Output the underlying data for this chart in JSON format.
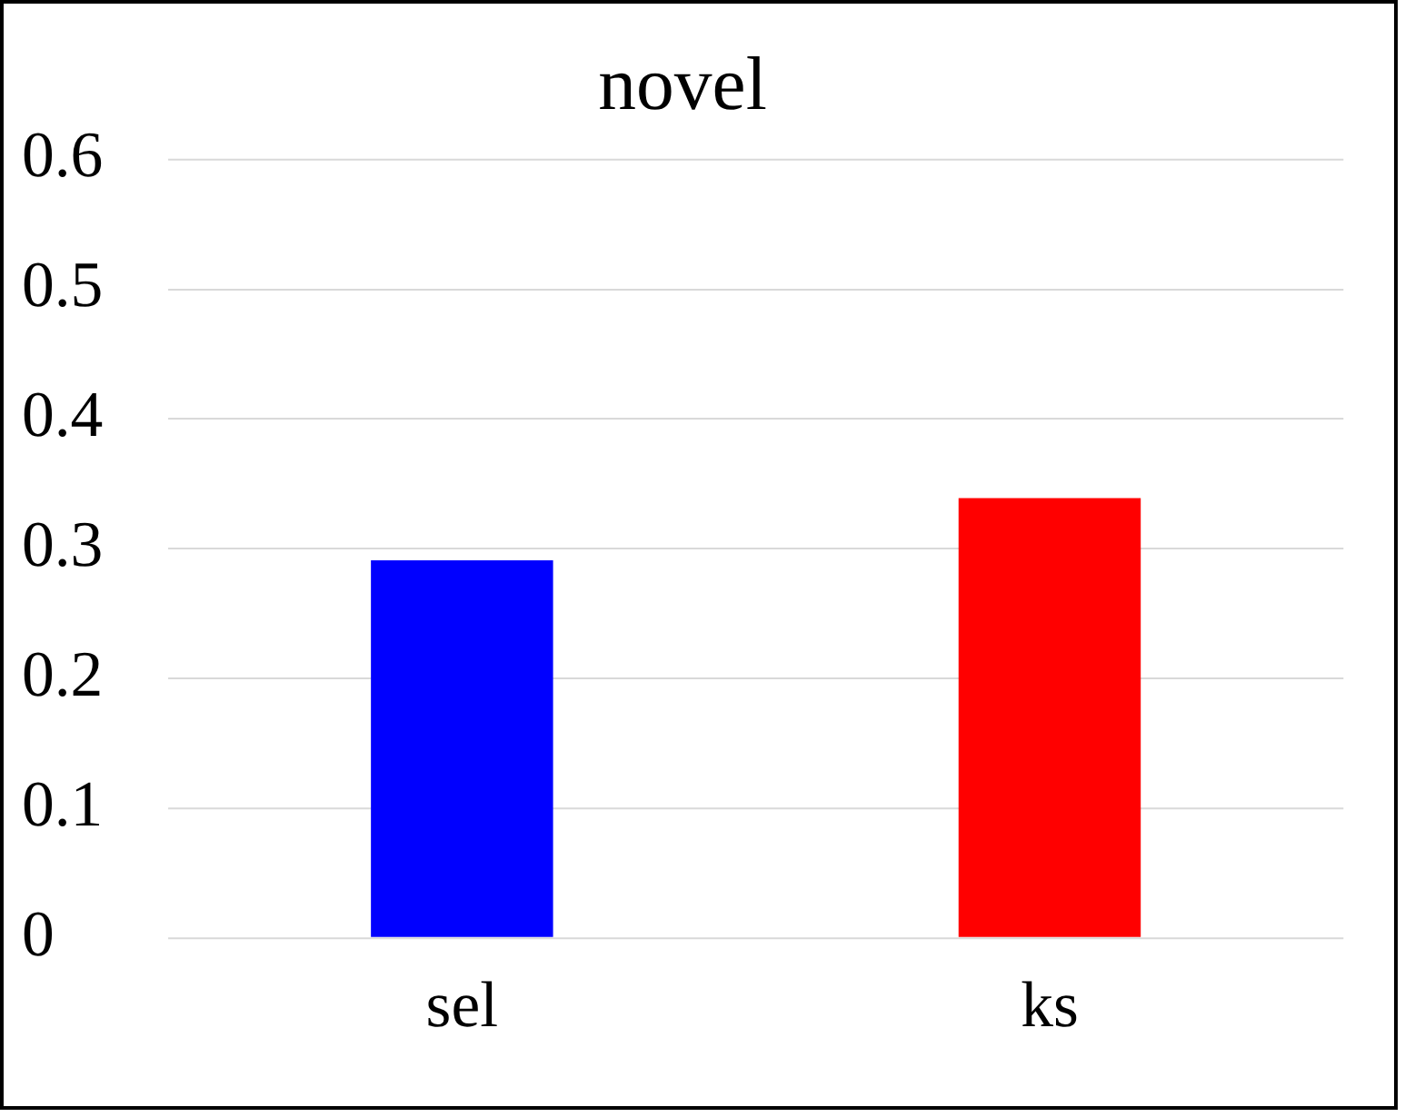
{
  "chart_data": {
    "type": "bar",
    "title": "novel",
    "categories": [
      "sel",
      "ks"
    ],
    "values": [
      0.291,
      0.339
    ],
    "colors": [
      "#0000ff",
      "#ff0000"
    ],
    "ylim": [
      0,
      0.6
    ],
    "yticks": [
      0,
      0.1,
      0.2,
      0.3,
      0.4,
      0.5,
      0.6
    ],
    "grid": "y",
    "legend": false
  }
}
